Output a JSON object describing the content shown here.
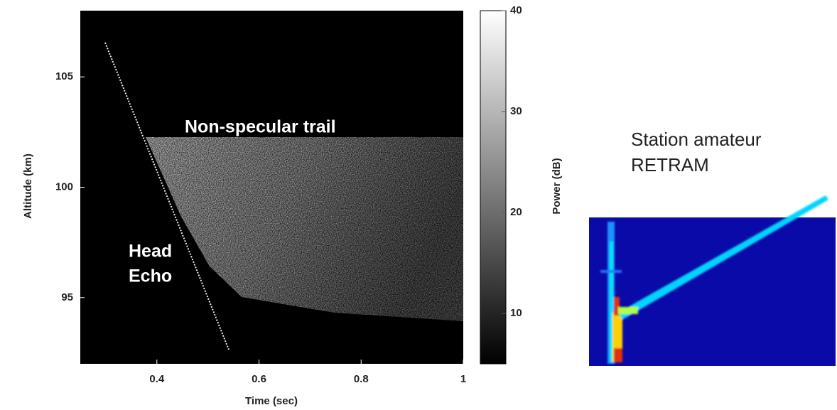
{
  "chart_data": [
    {
      "type": "heatmap",
      "x_label": "Time (sec)",
      "y_label": "Altitude (km)",
      "colorbar_label": "Power (dB)",
      "xlim": [
        0.25,
        1
      ],
      "xticks": [
        0.4,
        0.6,
        0.8,
        1
      ],
      "ylim": [
        92,
        108
      ],
      "yticks": [
        95,
        100,
        105
      ],
      "clim": [
        5,
        40
      ],
      "cticks": [
        10,
        20,
        30,
        40
      ],
      "annotations": [
        "Non-specular trail",
        "Head",
        "Echo"
      ]
    },
    {
      "type": "spectrogram",
      "title": [
        "Station amateur",
        "RETRAM"
      ]
    }
  ]
}
